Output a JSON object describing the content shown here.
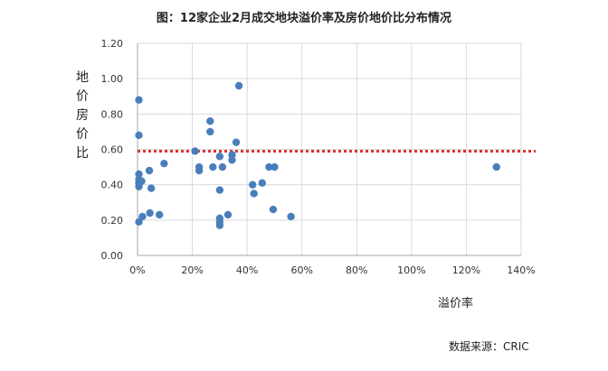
{
  "chart_data": {
    "type": "scatter",
    "title": "图：12家企业2月成交地块溢价率及房价地价比分布情况",
    "xlabel": "溢价率",
    "ylabel": "地价房价比",
    "xlim": [
      0,
      1.4
    ],
    "ylim": [
      0,
      1.2
    ],
    "x_ticks": [
      "0%",
      "20%",
      "40%",
      "60%",
      "80%",
      "100%",
      "120%",
      "140%"
    ],
    "y_ticks": [
      "0.00",
      "0.20",
      "0.40",
      "0.60",
      "0.80",
      "1.00",
      "1.20"
    ],
    "grid": true,
    "reference_line": {
      "y": 0.59,
      "style": "dotted",
      "color": "#d9322f"
    },
    "point_color": "#4a7ebb",
    "points": [
      {
        "x": 0.005,
        "y": 0.88
      },
      {
        "x": 0.005,
        "y": 0.68
      },
      {
        "x": 0.005,
        "y": 0.46
      },
      {
        "x": 0.005,
        "y": 0.43
      },
      {
        "x": 0.005,
        "y": 0.41
      },
      {
        "x": 0.005,
        "y": 0.39
      },
      {
        "x": 0.005,
        "y": 0.19
      },
      {
        "x": 0.015,
        "y": 0.42
      },
      {
        "x": 0.018,
        "y": 0.22
      },
      {
        "x": 0.043,
        "y": 0.48
      },
      {
        "x": 0.045,
        "y": 0.24
      },
      {
        "x": 0.05,
        "y": 0.38
      },
      {
        "x": 0.08,
        "y": 0.23
      },
      {
        "x": 0.097,
        "y": 0.52
      },
      {
        "x": 0.21,
        "y": 0.59
      },
      {
        "x": 0.225,
        "y": 0.5
      },
      {
        "x": 0.225,
        "y": 0.48
      },
      {
        "x": 0.265,
        "y": 0.76
      },
      {
        "x": 0.265,
        "y": 0.7
      },
      {
        "x": 0.275,
        "y": 0.5
      },
      {
        "x": 0.3,
        "y": 0.56
      },
      {
        "x": 0.3,
        "y": 0.37
      },
      {
        "x": 0.3,
        "y": 0.21
      },
      {
        "x": 0.3,
        "y": 0.19
      },
      {
        "x": 0.3,
        "y": 0.17
      },
      {
        "x": 0.31,
        "y": 0.5
      },
      {
        "x": 0.33,
        "y": 0.23
      },
      {
        "x": 0.345,
        "y": 0.57
      },
      {
        "x": 0.345,
        "y": 0.54
      },
      {
        "x": 0.36,
        "y": 0.64
      },
      {
        "x": 0.37,
        "y": 0.96
      },
      {
        "x": 0.42,
        "y": 0.4
      },
      {
        "x": 0.425,
        "y": 0.35
      },
      {
        "x": 0.455,
        "y": 0.41
      },
      {
        "x": 0.48,
        "y": 0.5
      },
      {
        "x": 0.5,
        "y": 0.5
      },
      {
        "x": 0.495,
        "y": 0.26
      },
      {
        "x": 0.56,
        "y": 0.22
      },
      {
        "x": 1.31,
        "y": 0.5
      }
    ],
    "source": "数据来源：CRIC"
  }
}
